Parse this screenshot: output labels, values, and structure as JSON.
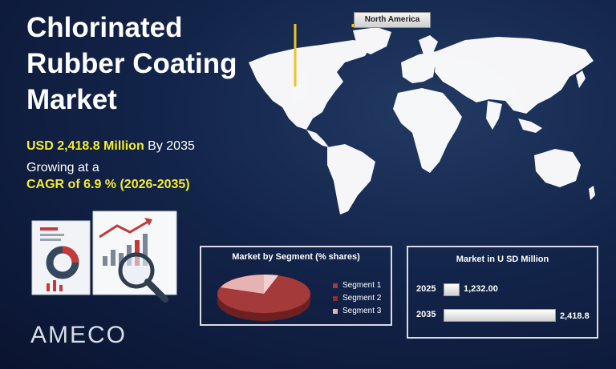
{
  "title": {
    "line1": "Chlorinated",
    "line2": "Rubber Coating",
    "line3": "Market"
  },
  "stats": {
    "value_bold": "USD 2,418.8 Million",
    "value_suffix": " By 2035",
    "growing": "Growing at a",
    "cagr": "CAGR of 6.9 % (2026-2035)"
  },
  "map": {
    "region_label": "North America",
    "colors": {
      "map": "#ffffff",
      "callout": "#f0c419"
    }
  },
  "segment_panel": {
    "title": "Market by  Segment  (% shares)",
    "legend": [
      "Segment 1",
      "Segment 2",
      "Segment 3"
    ],
    "colors": [
      "#a53a3a",
      "#8e2e2e",
      "#e7b2b2"
    ]
  },
  "market_panel": {
    "title": "Market in U SD Million",
    "rows": [
      {
        "year": "2025",
        "value": "1,232.00",
        "amount": 1232.0
      },
      {
        "year": "2035",
        "value": "2,418.8",
        "amount": 2418.8
      }
    ]
  },
  "logo": {
    "text": "AMECO"
  }
}
